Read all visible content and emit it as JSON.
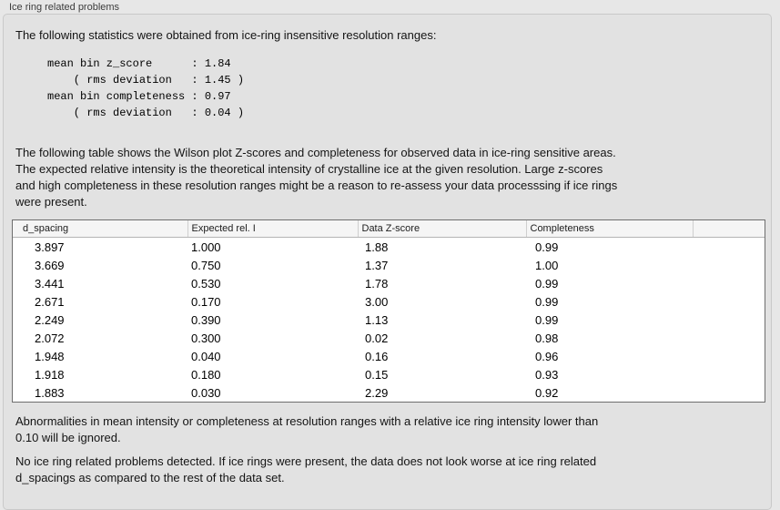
{
  "panel": {
    "title": "Ice ring related problems",
    "intro": "The following statistics were obtained from ice-ring insensitive resolution ranges:",
    "stats_block": "mean bin z_score      : 1.84\n    ( rms deviation   : 1.45 )\nmean bin completeness : 0.97\n    ( rms deviation   : 0.04 )",
    "table_description": "The following table shows the Wilson plot Z-scores and completeness for observed data in ice-ring sensitive areas.\nThe expected relative intensity is the theoretical intensity of crystalline ice at the given resolution. Large z-scores\nand high completeness in these resolution ranges might be a reason to re-assess your data processsing if ice rings\nwere present.",
    "note_ignored": "Abnormalities in mean intensity or completeness at resolution ranges with a relative ice ring intensity lower than\n0.10 will be ignored.",
    "conclusion": "No ice ring related problems detected. If ice rings were present, the data does not look worse at ice ring related\nd_spacings as compared to the rest of the data set."
  },
  "stats": {
    "mean_bin_z_score": "1.84",
    "z_score_rms_deviation": "1.45",
    "mean_bin_completeness": "0.97",
    "completeness_rms_deviation": "0.04"
  },
  "table": {
    "columns": [
      "d_spacing",
      "Expected rel. I",
      "Data Z-score",
      "Completeness"
    ],
    "rows": [
      [
        "3.897",
        "1.000",
        "1.88",
        "0.99"
      ],
      [
        "3.669",
        "0.750",
        "1.37",
        "1.00"
      ],
      [
        "3.441",
        "0.530",
        "1.78",
        "0.99"
      ],
      [
        "2.671",
        "0.170",
        "3.00",
        "0.99"
      ],
      [
        "2.249",
        "0.390",
        "1.13",
        "0.99"
      ],
      [
        "2.072",
        "0.300",
        "0.02",
        "0.98"
      ],
      [
        "1.948",
        "0.040",
        "0.16",
        "0.96"
      ],
      [
        "1.918",
        "0.180",
        "0.15",
        "0.93"
      ],
      [
        "1.883",
        "0.030",
        "2.29",
        "0.92"
      ]
    ]
  },
  "colors": {
    "page_bg": "#e7e7e7",
    "box_bg": "#e2e2e2",
    "box_border": "#c9c9c9",
    "table_border": "#6e6e6e",
    "header_bg": "#f5f5f5",
    "row_bg": "#ffffff"
  }
}
